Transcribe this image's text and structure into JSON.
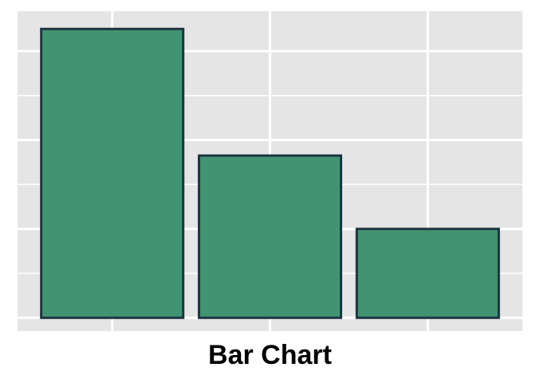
{
  "chart_data": {
    "type": "bar",
    "categories": [
      "",
      "",
      ""
    ],
    "values": [
      6.5,
      3.65,
      2.0
    ],
    "title": "",
    "xlabel": "Bar Chart",
    "ylabel": "",
    "ylim": [
      -0.3,
      6.9
    ],
    "grid": true
  },
  "colors": {
    "panel_background": "#e5e5e5",
    "grid": "#ffffff",
    "bar_fill": "#419472",
    "bar_stroke": "#1e3440"
  }
}
